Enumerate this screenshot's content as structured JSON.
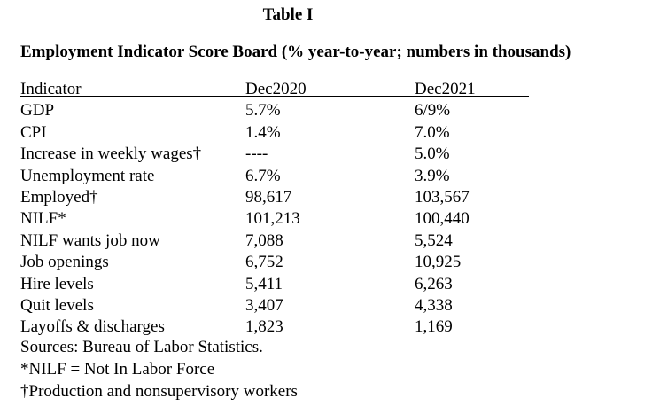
{
  "table_label": "Table I",
  "caption": "Employment Indicator Score Board (% year-to-year; numbers in thousands)",
  "columns": [
    "Indicator",
    "Dec2020",
    "Dec2021"
  ],
  "rows": [
    {
      "indicator": "GDP",
      "dec2020": "5.7%",
      "dec2021": "6/9%"
    },
    {
      "indicator": "CPI",
      "dec2020": "1.4%",
      "dec2021": "7.0%"
    },
    {
      "indicator": "Increase in weekly wages†",
      "dec2020": "----",
      "dec2021": "5.0%"
    },
    {
      "indicator": "Unemployment rate",
      "dec2020": "6.7%",
      "dec2021": "3.9%"
    },
    {
      "indicator": "Employed†",
      "dec2020": "98,617",
      "dec2021": "103,567"
    },
    {
      "indicator": "NILF*",
      "dec2020": "101,213",
      "dec2021": "100,440"
    },
    {
      "indicator": "NILF wants job now",
      "dec2020": "7,088",
      "dec2021": "5,524"
    },
    {
      "indicator": "Job openings",
      "dec2020": "6,752",
      "dec2021": "10,925"
    },
    {
      "indicator": "Hire levels",
      "dec2020": "5,411",
      "dec2021": "6,263"
    },
    {
      "indicator": "Quit levels",
      "dec2020": "3,407",
      "dec2021": "4,338"
    },
    {
      "indicator": "Layoffs & discharges",
      "dec2020": "1,823",
      "dec2021": "1,169"
    }
  ],
  "footnotes": {
    "sources": "Sources: Bureau of Labor Statistics.",
    "nilf": "*NILF = Not In Labor Force",
    "dagger": "†Production and nonsupervisory workers"
  }
}
